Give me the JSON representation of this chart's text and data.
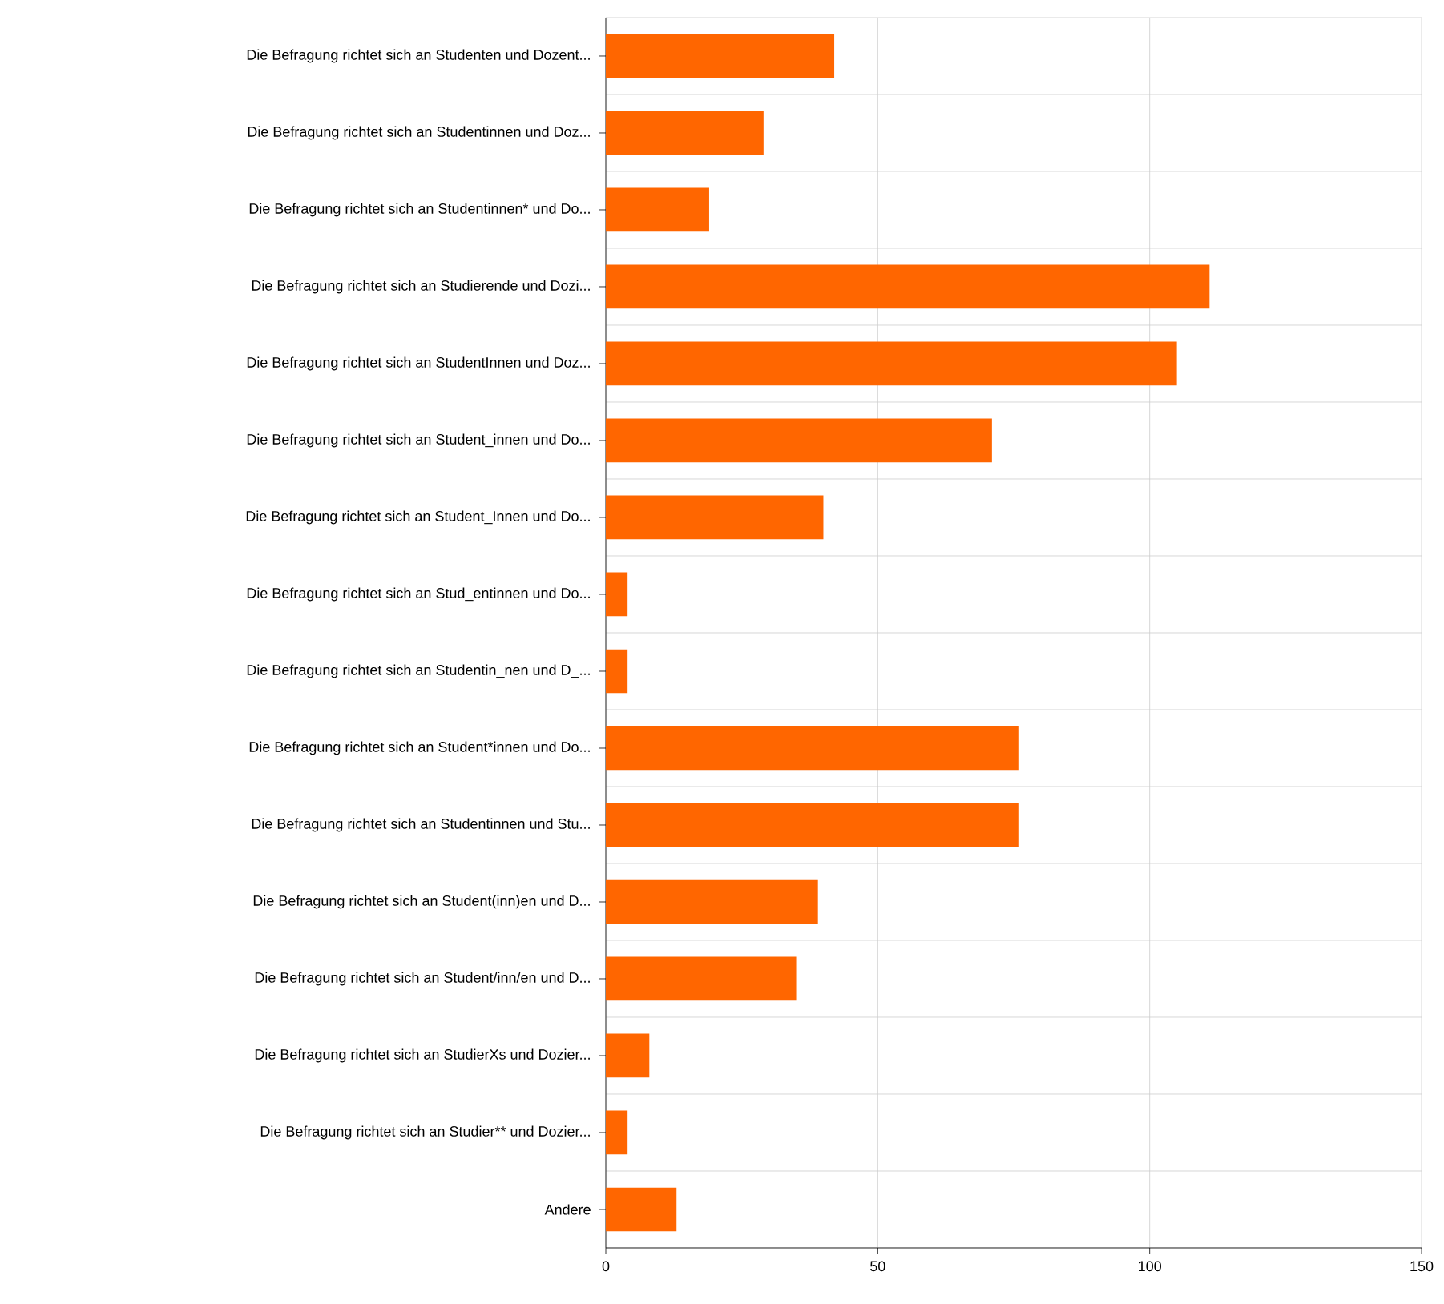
{
  "chart_data": {
    "type": "bar",
    "orientation": "horizontal",
    "color": "#ff6600",
    "grid": true,
    "categories": [
      "Die Befragung richtet sich an Studenten und Dozent...",
      "Die Befragung richtet sich an Studentinnen und Doz...",
      "Die Befragung richtet sich an Studentinnen* und Do...",
      "Die Befragung richtet sich an Studierende und Dozi...",
      "Die Befragung richtet sich an StudentInnen und Doz...",
      "Die Befragung richtet sich an Student_innen und Do...",
      "Die Befragung richtet sich an Student_Innen und Do...",
      "Die Befragung richtet sich an Stud_entinnen und Do...",
      "Die Befragung richtet sich an Studentin_nen und D_...",
      "Die Befragung richtet sich an Student*innen und Do...",
      "Die Befragung richtet sich an Studentinnen und Stu...",
      "Die Befragung richtet sich an Student(inn)en und D...",
      "Die Befragung richtet sich an Student/inn/en und D...",
      "Die Befragung richtet sich an StudierXs und Dozier...",
      "Die Befragung richtet sich an Studier** und Dozier...",
      "Andere"
    ],
    "values": [
      42,
      29,
      19,
      111,
      105,
      71,
      40,
      4,
      4,
      76,
      76,
      39,
      35,
      8,
      4,
      13
    ],
    "xlim": [
      0,
      150
    ],
    "xticks": [
      0,
      50,
      100,
      150
    ]
  }
}
